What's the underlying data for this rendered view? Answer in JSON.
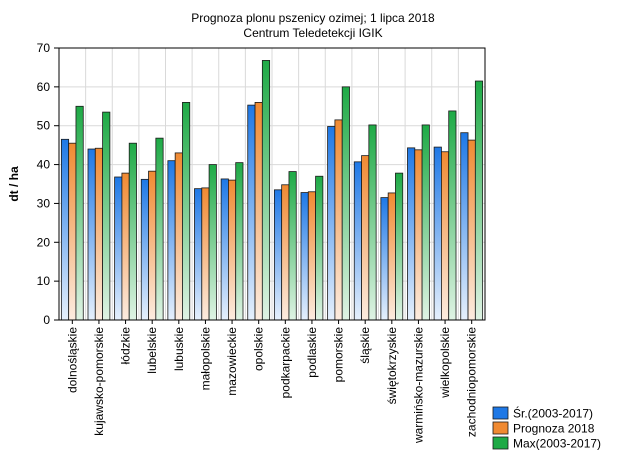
{
  "chart_data": {
    "type": "bar",
    "title": "Prognoza plonu pszenicy ozimej; 1 lipca 2018",
    "subtitle": "Centrum Teledetekcji IGIK",
    "xlabel": "",
    "ylabel": "dt / ha",
    "ylim": [
      0,
      70
    ],
    "yticks": [
      0,
      10,
      20,
      30,
      40,
      50,
      60,
      70
    ],
    "grid": true,
    "legend_position": "bottom-right",
    "categories": [
      "dolnośląskie",
      "kujawsko-pomorskie",
      "łódzkie",
      "lubelskie",
      "lubuskie",
      "małopolskie",
      "mazowieckie",
      "opolskie",
      "podkarpackie",
      "podlaskie",
      "pomorskie",
      "śląskie",
      "świętokrzyskie",
      "warmińsko-mazurskie",
      "wielkopolskie",
      "zachodniopomorskie"
    ],
    "series": [
      {
        "name": "Śr.(2003-2017)",
        "color": "#1e78e6",
        "values": [
          46.5,
          44.0,
          36.8,
          36.2,
          41.0,
          33.8,
          36.3,
          55.3,
          33.5,
          32.8,
          49.8,
          40.7,
          31.5,
          44.3,
          44.5,
          48.2
        ]
      },
      {
        "name": "Prognoza 2018",
        "color": "#f08a32",
        "values": [
          45.5,
          44.2,
          37.8,
          38.3,
          43.0,
          34.0,
          36.0,
          56.0,
          34.8,
          33.0,
          51.5,
          42.3,
          32.7,
          43.8,
          43.3,
          46.3
        ]
      },
      {
        "name": "Max(2003-2017)",
        "color": "#1eaa46",
        "values": [
          55.0,
          53.5,
          45.5,
          46.8,
          56.0,
          40.0,
          40.5,
          66.8,
          38.2,
          37.0,
          60.0,
          50.2,
          37.8,
          50.2,
          53.8,
          61.5
        ]
      }
    ]
  }
}
